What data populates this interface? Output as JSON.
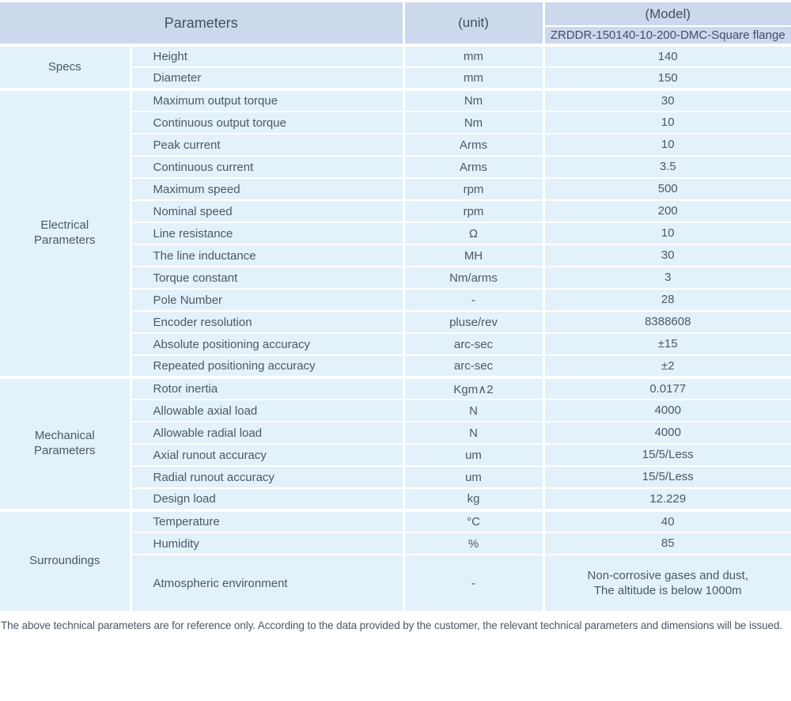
{
  "header": {
    "parameters_label": "Parameters",
    "unit_label": "(unit)",
    "model_label": "(Model)",
    "model_value": "ZRDDR-150140-10-200-DMC-Square flange"
  },
  "sections": [
    {
      "group": "Specs",
      "rows": [
        {
          "name": "Height",
          "unit": "mm",
          "value": "140"
        },
        {
          "name": "Diameter",
          "unit": "mm",
          "value": "150"
        }
      ]
    },
    {
      "group": "Electrical\nParameters",
      "rows": [
        {
          "name": "Maximum output torque",
          "unit": "Nm",
          "value": "30"
        },
        {
          "name": "Continuous output torque",
          "unit": "Nm",
          "value": "10"
        },
        {
          "name": "Peak current",
          "unit": "Arms",
          "value": "10"
        },
        {
          "name": "Continuous current",
          "unit": "Arms",
          "value": "3.5"
        },
        {
          "name": "Maximum speed",
          "unit": "rpm",
          "value": "500"
        },
        {
          "name": "Nominal speed",
          "unit": "rpm",
          "value": "200"
        },
        {
          "name": "Line resistance",
          "unit": "Ω",
          "value": "10"
        },
        {
          "name": "The line inductance",
          "unit": "MH",
          "value": "30"
        },
        {
          "name": "Torque constant",
          "unit": "Nm/arms",
          "value": "3"
        },
        {
          "name": "Pole Number",
          "unit": "-",
          "value": "28"
        },
        {
          "name": "Encoder resolution",
          "unit": "pluse/rev",
          "value": "8388608"
        },
        {
          "name": "Absolute positioning accuracy",
          "unit": "arc-sec",
          "value": "±15"
        },
        {
          "name": "Repeated positioning accuracy",
          "unit": "arc-sec",
          "value": "±2"
        }
      ]
    },
    {
      "group": "Mechanical\nParameters",
      "rows": [
        {
          "name": "Rotor inertia",
          "unit": "Kgm∧2",
          "value": "0.0177"
        },
        {
          "name": "Allowable axial load",
          "unit": "N",
          "value": "4000"
        },
        {
          "name": "Allowable radial load",
          "unit": "N",
          "value": "4000"
        },
        {
          "name": "Axial runout accuracy",
          "unit": "um",
          "value": "15/5/Less"
        },
        {
          "name": "Radial runout accuracy",
          "unit": "um",
          "value": "15/5/Less"
        },
        {
          "name": "Design load",
          "unit": "kg",
          "value": "12.229"
        }
      ]
    },
    {
      "group": "Surroundings",
      "rows": [
        {
          "name": "Temperature",
          "unit": "°C",
          "value": "40"
        },
        {
          "name": "Humidity",
          "unit": "%",
          "value": "85"
        },
        {
          "name": "Atmospheric environment",
          "unit": "-",
          "value": "Non-corrosive gases and dust,\nThe altitude is below 1000m",
          "tall": true
        }
      ]
    }
  ],
  "footer": {
    "note": "The above technical parameters are for reference only. According to the data provided by the customer, the relevant technical parameters and dimensions will be issued."
  },
  "colors": {
    "header_bg": "#ccd8ec",
    "model_row_bg": "#cfdaee",
    "cell_bg": "#e3f1fb",
    "divider": "#ffffff",
    "text": "#4c5866"
  }
}
